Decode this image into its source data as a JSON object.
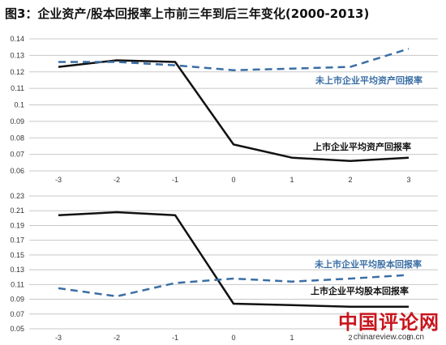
{
  "title": "图3：企业资产/股本回报率上市前三年到后三年变化(2000-2013)",
  "colors": {
    "listed": "#111111",
    "unlisted": "#3a6ea5",
    "grid": "#c8c8c8"
  },
  "watermark": {
    "main": "中国评论网",
    "sub": "chinareview.com.cn"
  },
  "chart_data": [
    {
      "type": "line",
      "title": "",
      "xlabel": "",
      "ylabel": "",
      "x": [
        -3,
        -2,
        -1,
        0,
        1,
        2,
        3
      ],
      "x_tick_labels": [
        "-3",
        "-2",
        "-1",
        "0",
        "1",
        "2",
        "3"
      ],
      "ylim": [
        0.06,
        0.14
      ],
      "y_ticks": [
        0.06,
        0.07,
        0.08,
        0.09,
        0.1,
        0.11,
        0.12,
        0.13,
        0.14
      ],
      "y_tick_labels": [
        "0.06",
        "0.07",
        "0.08",
        "0.09",
        "0.1",
        "0.11",
        "0.12",
        "0.13",
        "0.14"
      ],
      "grid": true,
      "series": [
        {
          "name": "上市企业平均资产回报率",
          "style": "solid",
          "values": [
            0.123,
            0.127,
            0.126,
            0.076,
            0.068,
            0.066,
            0.068
          ]
        },
        {
          "name": "未上市企业平均资产回报率",
          "style": "dashed",
          "values": [
            0.126,
            0.126,
            0.124,
            0.121,
            0.122,
            0.123,
            0.134
          ]
        }
      ]
    },
    {
      "type": "line",
      "title": "",
      "xlabel": "",
      "ylabel": "",
      "x": [
        -3,
        -2,
        -1,
        0,
        1,
        2,
        3
      ],
      "x_tick_labels": [
        "-3",
        "-2",
        "-1",
        "0",
        "1",
        "2",
        "3"
      ],
      "ylim": [
        0.05,
        0.23
      ],
      "y_ticks": [
        0.05,
        0.07,
        0.09,
        0.11,
        0.13,
        0.15,
        0.17,
        0.19,
        0.21,
        0.23
      ],
      "y_tick_labels": [
        "0.05",
        "0.07",
        "0.09",
        "0.11",
        "0.13",
        "0.15",
        "0.17",
        "0.19",
        "0.21",
        "0.23"
      ],
      "grid": true,
      "series": [
        {
          "name": "上市企业平均股本回报率",
          "style": "solid",
          "values": [
            0.204,
            0.208,
            0.204,
            0.084,
            0.082,
            0.08,
            0.08
          ]
        },
        {
          "name": "未上市企业平均股本回报率",
          "style": "dashed",
          "values": [
            0.105,
            0.094,
            0.112,
            0.118,
            0.114,
            0.118,
            0.123
          ]
        }
      ]
    }
  ]
}
